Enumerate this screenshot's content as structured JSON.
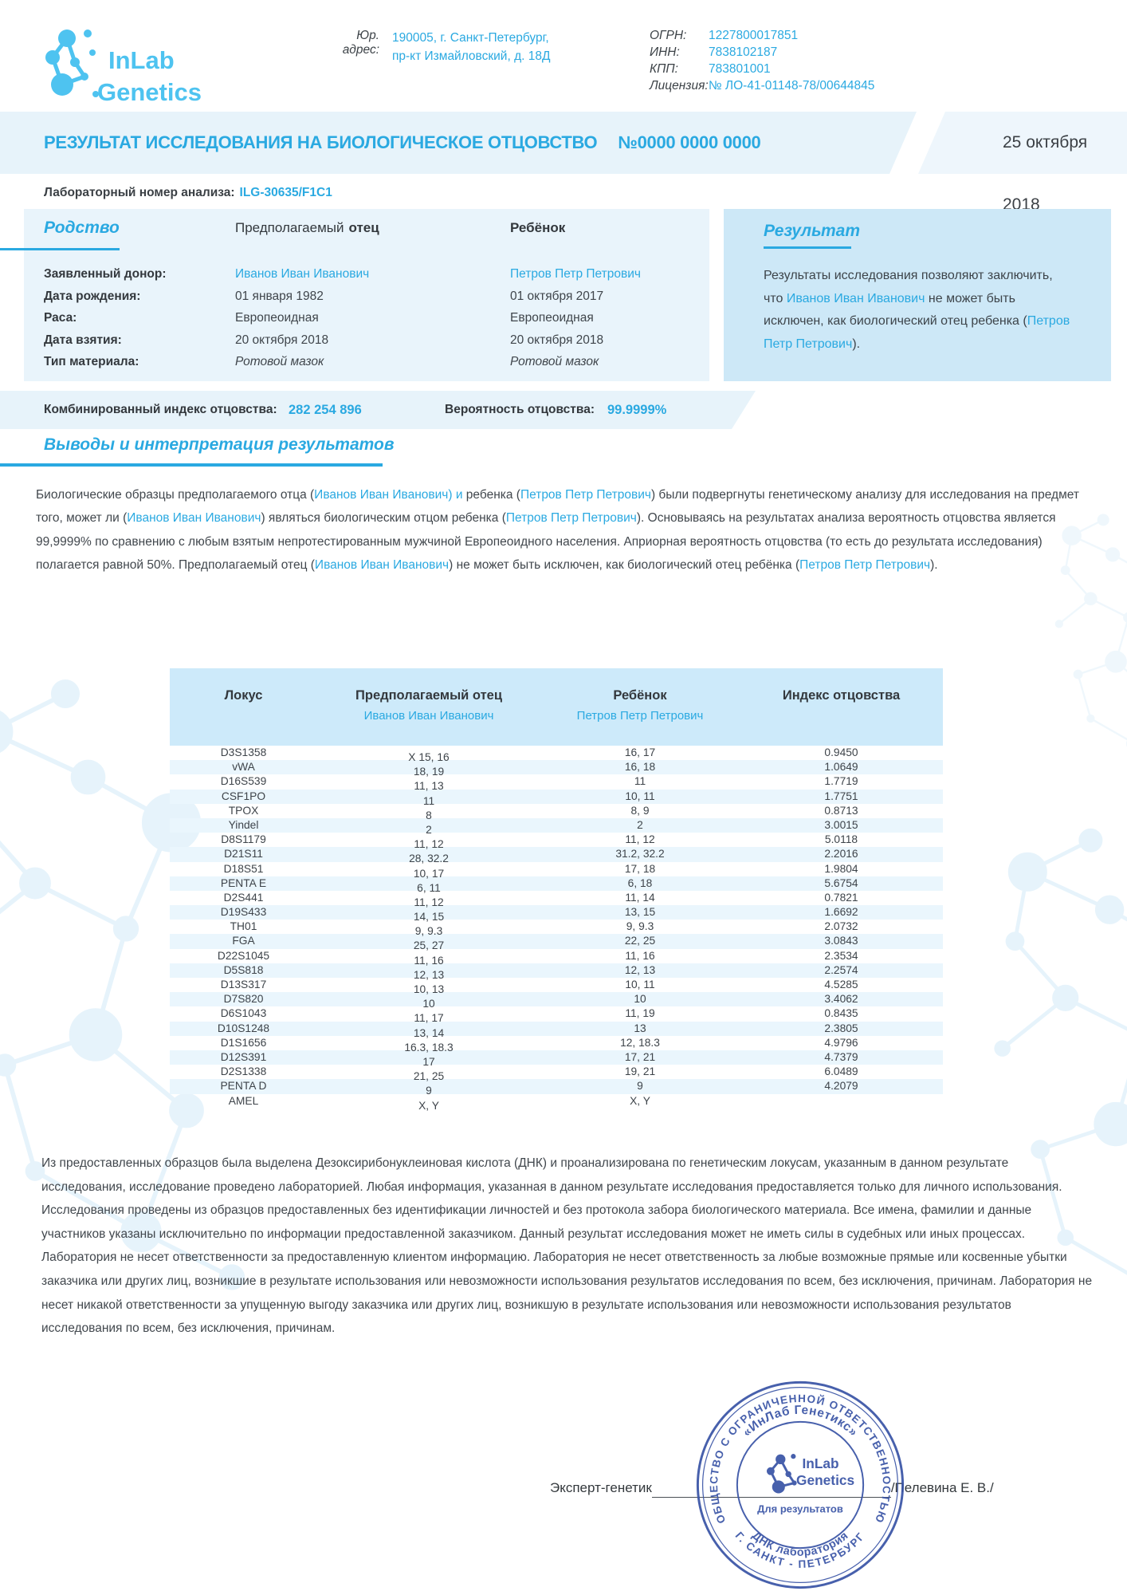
{
  "header": {
    "logo": {
      "line1": "InLab",
      "line2": "Genetics"
    },
    "address": {
      "label": "Юр. адрес:",
      "line1": "190005, г. Санкт-Петербург,",
      "line2": "пр-кт Измайловский, д. 18Д"
    },
    "legal": [
      {
        "label": "ОГРН:",
        "value": "1227800017851"
      },
      {
        "label": "ИНН:",
        "value": "7838102187"
      },
      {
        "label": "КПП:",
        "value": "783801001"
      },
      {
        "label": "Лицензия:",
        "value": "№ ЛО-41-01148-78/00644845"
      }
    ]
  },
  "title_bar": {
    "title": "РЕЗУЛЬТАТ ИССЛЕДОВАНИЯ НА БИОЛОГИЧЕСКОЕ ОТЦОВСТВО",
    "number": "№0000 0000 0000",
    "date": "25 октября 2018"
  },
  "lab_number": {
    "label": "Лабораторный номер анализа:",
    "value": "ILG-30635/F1C1"
  },
  "kinship": {
    "heading": "Родство",
    "father_header_1": "Предполагаемый",
    "father_header_2": "отец",
    "child_header": "Ребёнок",
    "rows": [
      {
        "label": "Заявленный донор:",
        "father": "Иванов Иван Иванович",
        "child": "Петров Петр Петрович",
        "cls": "accent"
      },
      {
        "label": "Дата рождения:",
        "father": "01 января 1982",
        "child": "01 октября 2017",
        "cls": ""
      },
      {
        "label": "Раса:",
        "father": "Европеоидная",
        "child": "Европеоидная",
        "cls": ""
      },
      {
        "label": "Дата взятия:",
        "father": "20 октября 2018",
        "child": "20 октября 2018",
        "cls": ""
      },
      {
        "label": "Тип материала:",
        "father": "Ротовой мазок",
        "child": "Ротовой мазок",
        "cls": "italic"
      }
    ]
  },
  "result_box": {
    "heading": "Результат",
    "segments": [
      {
        "t": "Результаты исследования позволяют заключить, что "
      },
      {
        "t": "Иванов Иван Иванович",
        "a": 1
      },
      {
        "t": " не может быть исключен, как биологический отец ребенка ("
      },
      {
        "t": "Петров Петр Петрович",
        "a": 1
      },
      {
        "t": ")."
      }
    ]
  },
  "combined": {
    "index_label": "Комбинированный индекс отцовства:",
    "index_value": "282 254 896",
    "prob_label": "Вероятность отцовства:",
    "prob_value": "99.9999%"
  },
  "conclusions": {
    "heading": "Выводы и интерпретация результатов",
    "segments": [
      {
        "t": "Биологические образцы предполагаемого отца ("
      },
      {
        "t": "Иванов Иван Иванович) и",
        "a": 1
      },
      {
        "t": " ребенка ("
      },
      {
        "t": "Петров Петр Петрович",
        "a": 1
      },
      {
        "t": ") были подвергнуты генетическому анализу для исследования на предмет того, может ли ("
      },
      {
        "t": "Иванов Иван Иванович",
        "a": 1
      },
      {
        "t": ") являться биологическим отцом ребенка ("
      },
      {
        "t": "Петров Петр Петрович",
        "a": 1
      },
      {
        "t": "). Основываясь на результатах анализа вероятность отцовства является 99,9999% по сравнению с любым взятым непротестированным мужчиной Европеоидного населения. Априорная вероятность отцовства (то есть до результата исследования) полагается равной 50%. Предполагаемый отец ("
      },
      {
        "t": "Иванов Иван Иванович",
        "a": 1
      },
      {
        "t": ") не может быть исключен, как биологический отец ребёнка ("
      },
      {
        "t": "Петров Петр Петрович",
        "a": 1
      },
      {
        "t": ")."
      }
    ]
  },
  "table": {
    "header": {
      "locus": "Локус",
      "father": "Предполагаемый отец",
      "father_name": "Иванов Иван Иванович",
      "child": "Ребёнок",
      "child_name": "Петров Петр Петрович",
      "index": "Индекс отцовства"
    },
    "rows": [
      {
        "locus": "D3S1358",
        "father": "X 15, 16",
        "child": "16, 17",
        "index": "0.9450"
      },
      {
        "locus": "vWA",
        "father": "18, 19",
        "child": "16, 18",
        "index": "1.0649"
      },
      {
        "locus": "D16S539",
        "father": "11, 13",
        "child": "11",
        "index": "1.7719"
      },
      {
        "locus": "CSF1PO",
        "father": "11",
        "child": "10, 11",
        "index": "1.7751"
      },
      {
        "locus": "TPOX",
        "father": "8",
        "child": "8, 9",
        "index": "0.8713"
      },
      {
        "locus": "Yindel",
        "father": "2",
        "child": "2",
        "index": "3.0015"
      },
      {
        "locus": "D8S1179",
        "father": "11, 12",
        "child": "11, 12",
        "index": "5.0118"
      },
      {
        "locus": "D21S11",
        "father": "28, 32.2",
        "child": "31.2, 32.2",
        "index": "2.2016"
      },
      {
        "locus": "D18S51",
        "father": "10, 17",
        "child": "17, 18",
        "index": "1.9804"
      },
      {
        "locus": "PENTA E",
        "father": "6, 11",
        "child": "6, 18",
        "index": "5.6754"
      },
      {
        "locus": "D2S441",
        "father": "11, 12",
        "child": "11, 14",
        "index": "0.7821"
      },
      {
        "locus": "D19S433",
        "father": "14, 15",
        "child": "13, 15",
        "index": "1.6692"
      },
      {
        "locus": "TH01",
        "father": "9, 9.3",
        "child": "9, 9.3",
        "index": "2.0732"
      },
      {
        "locus": "FGA",
        "father": "25, 27",
        "child": "22, 25",
        "index": "3.0843"
      },
      {
        "locus": "D22S1045",
        "father": "11, 16",
        "child": "11, 16",
        "index": "2.3534"
      },
      {
        "locus": "D5S818",
        "father": "12, 13",
        "child": "12, 13",
        "index": "2.2574"
      },
      {
        "locus": "D13S317",
        "father": "10, 13",
        "child": "10, 11",
        "index": "4.5285"
      },
      {
        "locus": "D7S820",
        "father": "10",
        "child": "10",
        "index": "3.4062"
      },
      {
        "locus": "D6S1043",
        "father": "11, 17",
        "child": "11, 19",
        "index": "0.8435"
      },
      {
        "locus": "D10S1248",
        "father": "13, 14",
        "child": "13",
        "index": "2.3805"
      },
      {
        "locus": "D1S1656",
        "father": "16.3, 18.3",
        "child": "12, 18.3",
        "index": "4.9796"
      },
      {
        "locus": "D12S391",
        "father": "17",
        "child": "17, 21",
        "index": "4.7379"
      },
      {
        "locus": "D2S1338",
        "father": "21, 25",
        "child": "19, 21",
        "index": "6.0489"
      },
      {
        "locus": "PENTA D",
        "father": "9",
        "child": "9",
        "index": "4.2079"
      },
      {
        "locus": "AMEL",
        "father": "X, Y",
        "child": "X, Y",
        "index": ""
      }
    ]
  },
  "disclaimer": "Из предоставленных образцов была выделена Дезоксирибонуклеиновая кислота (ДНК) и проанализирована по генетическим локусам, указанным в данном результате исследования, исследование проведено лабораторией. Любая информация, указанная в данном результате исследования предоставляется только для личного использования. Исследования проведены из образцов предоставленных без идентификации личностей и без протокола забора биологического материала.  Все имена, фамилии и данные участников указаны исключительно по информации предоставленной заказчиком. Данный результат исследования может не иметь силы в судебных или иных процессах. Лаборатория не несет ответственности за предоставленную клиентом информацию. Лаборатория не несет ответственность за любые возможные прямые или косвенные убытки заказчика или других лиц, возникшие в результате использования или невозможности использования результатов исследования по всем, без исключения, причинам.  Лаборатория не несет никакой ответственности за упущенную выгоду заказчика или других лиц, возникшую в результате использования или невозможности использования результатов исследования по всем, без исключения, причинам.",
  "signature": {
    "role": "Эксперт-генетик",
    "name": "/Пелевина Е. В./"
  },
  "stamp": {
    "ring_top": "ОБЩЕСТВО С ОГРАНИЧЕННОЙ ОТВЕТСТВЕННОСТЬЮ",
    "ring_bottom": "Г. САНКТ - ПЕТЕРБУРГ",
    "inner_top": "«ИнЛаб Генетикс»",
    "inner_bottom": "ДНК лаборатория",
    "center1": "InLab",
    "center2": "Genetics",
    "center3": "Для результатов"
  },
  "colors": {
    "accent": "#2aa9e1",
    "band_light": "#e7f3fa",
    "panel_light": "#e9f4fb",
    "panel_result": "#cde8f7",
    "table_header": "#cdeafa",
    "table_stripe": "#eaf6fd",
    "stamp_blue": "#3a54a6",
    "logo_blue": "#4ec3f0"
  }
}
